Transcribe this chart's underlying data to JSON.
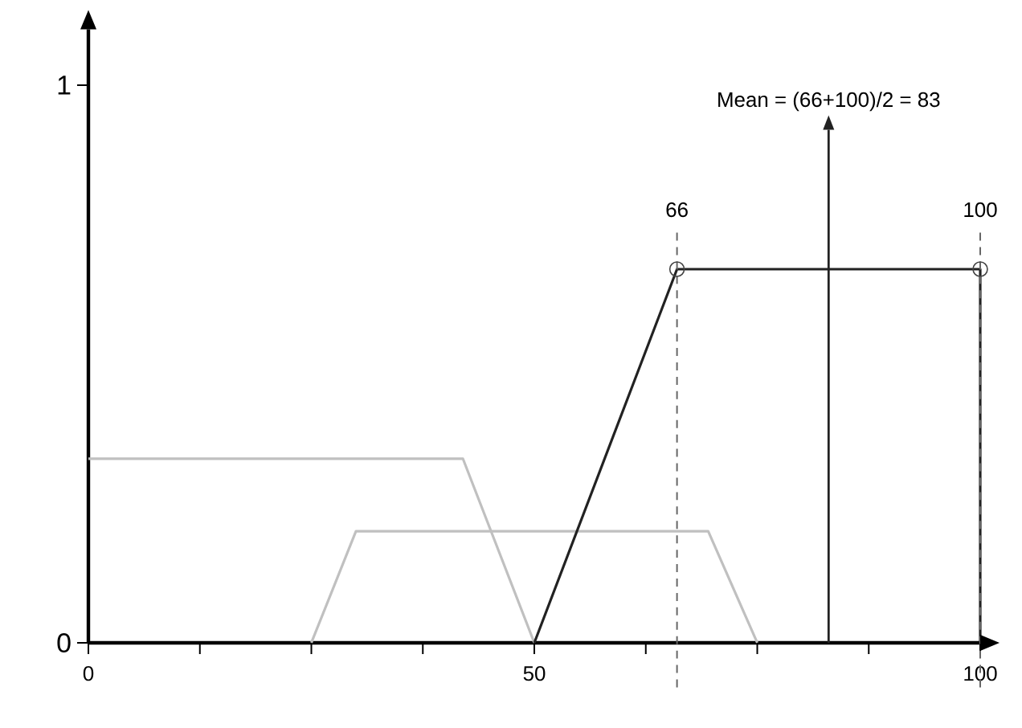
{
  "chart_data": {
    "type": "line",
    "xlim": [
      0,
      100
    ],
    "ylim": [
      0,
      1.1
    ],
    "xticks": [
      0,
      {
        "value": 12.5,
        "label": null
      },
      {
        "value": 25,
        "label": null
      },
      {
        "value": 37.5,
        "label": null
      },
      50,
      {
        "value": 62.5,
        "label": null
      },
      {
        "value": 75,
        "label": null
      },
      {
        "value": 87.5,
        "label": null
      },
      100
    ],
    "yticks": [
      0,
      1
    ],
    "grid": false,
    "series": [
      {
        "color": "#c0c0c0",
        "x": [
          0,
          42,
          50
        ],
        "values": [
          0.33,
          0.33,
          0
        ]
      },
      {
        "color": "#c0c0c0",
        "x": [
          25,
          30,
          69.5,
          75
        ],
        "values": [
          0,
          0.2,
          0.2,
          0
        ]
      },
      {
        "color": "#222222",
        "x": [
          50,
          66,
          100,
          100
        ],
        "values": [
          0,
          0.67,
          0.67,
          0
        ]
      },
      {
        "type": "scatter",
        "marker": "circle",
        "color": "#444444",
        "x": [
          66,
          100
        ],
        "values": [
          0.67,
          0.67
        ]
      }
    ],
    "ref_lines": [
      {
        "axis": "x",
        "value": 66,
        "label": "66",
        "line_style": "dashed",
        "color": "#666666"
      },
      {
        "axis": "x",
        "value": 100,
        "label": "100",
        "line_style": "dashed",
        "color": "#666666"
      },
      {
        "axis": "x",
        "value": 83,
        "label": "Mean = (66+100)/2 = 83",
        "line_style": "solid",
        "color": "#222222"
      }
    ]
  }
}
